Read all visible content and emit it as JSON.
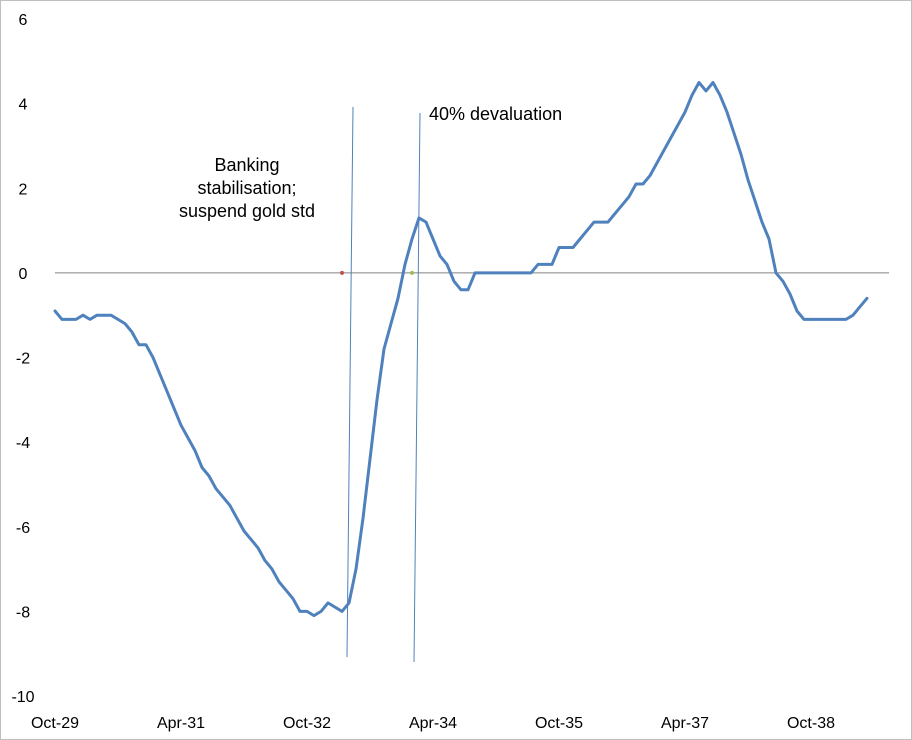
{
  "chart_data": {
    "type": "line",
    "title": "",
    "xlabel": "",
    "ylabel": "",
    "ylim": [
      -10,
      6
    ],
    "yticks": [
      -10,
      -8,
      -6,
      -4,
      -2,
      0,
      2,
      4,
      6
    ],
    "x_tick_labels": [
      "Oct-29",
      "Apr-31",
      "Oct-32",
      "Apr-34",
      "Oct-35",
      "Apr-37",
      "Oct-38"
    ],
    "x_start": "Oct-29",
    "grid": false,
    "legend": "none",
    "series": [
      {
        "color": "#4f81bd",
        "values": [
          -0.9,
          -1.1,
          -1.1,
          -1.1,
          -1.0,
          -1.1,
          -1.0,
          -1.0,
          -1.0,
          -1.1,
          -1.2,
          -1.4,
          -1.7,
          -1.7,
          -2.0,
          -2.4,
          -2.8,
          -3.2,
          -3.6,
          -3.9,
          -4.2,
          -4.6,
          -4.8,
          -5.1,
          -5.3,
          -5.5,
          -5.8,
          -6.1,
          -6.3,
          -6.5,
          -6.8,
          -7.0,
          -7.3,
          -7.5,
          -7.7,
          -8.0,
          -8.0,
          -8.1,
          -8.0,
          -7.8,
          -7.9,
          -8.0,
          -7.8,
          -7.0,
          -5.8,
          -4.4,
          -3.0,
          -1.8,
          -1.2,
          -0.6,
          0.2,
          0.8,
          1.3,
          1.2,
          0.8,
          0.4,
          0.2,
          -0.2,
          -0.4,
          -0.4,
          0.0,
          0.0,
          0.0,
          0.0,
          0.0,
          0.0,
          0.0,
          0.0,
          0.0,
          0.2,
          0.2,
          0.2,
          0.6,
          0.6,
          0.6,
          0.8,
          1.0,
          1.2,
          1.2,
          1.2,
          1.4,
          1.6,
          1.8,
          2.1,
          2.1,
          2.3,
          2.6,
          2.9,
          3.2,
          3.5,
          3.8,
          4.2,
          4.5,
          4.3,
          4.5,
          4.2,
          3.8,
          3.3,
          2.8,
          2.2,
          1.7,
          1.2,
          0.8,
          0.0,
          -0.2,
          -0.5,
          -0.9,
          -1.1,
          -1.1,
          -1.1,
          -1.1,
          -1.1,
          -1.1,
          -1.1,
          -1.0,
          -0.8,
          -0.6
        ]
      }
    ],
    "vertical_lines": [
      {
        "label": "Banking stabilisation; suspend gold std",
        "label_lines": [
          "Banking",
          "stabilisation;",
          "suspend gold std"
        ],
        "index": 40,
        "color": "#4f81bd",
        "marker_color": "#c0504d"
      },
      {
        "label": "40% devaluation",
        "label_lines": [
          "40% devaluation"
        ],
        "index": 48,
        "color": "#4f81bd",
        "marker_color": "#9bbb59"
      }
    ]
  }
}
